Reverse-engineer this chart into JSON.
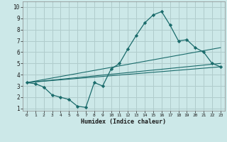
{
  "xlabel": "Humidex (Indice chaleur)",
  "ylabel": "",
  "xlim": [
    -0.5,
    23.5
  ],
  "ylim": [
    0.8,
    10.5
  ],
  "xticks": [
    0,
    1,
    2,
    3,
    4,
    5,
    6,
    7,
    8,
    9,
    10,
    11,
    12,
    13,
    14,
    15,
    16,
    17,
    18,
    19,
    20,
    21,
    22,
    23
  ],
  "yticks": [
    1,
    2,
    3,
    4,
    5,
    6,
    7,
    8,
    9,
    10
  ],
  "background_color": "#cce8e8",
  "grid_color": "#b0cccc",
  "line_color": "#1a6b6b",
  "line1_x": [
    0,
    1,
    2,
    3,
    4,
    5,
    6,
    7,
    8,
    9,
    10,
    11,
    12,
    13,
    14,
    15,
    16,
    17,
    18,
    19,
    20,
    21,
    22,
    23
  ],
  "line1_y": [
    3.3,
    3.2,
    2.9,
    2.2,
    2.0,
    1.8,
    1.2,
    1.1,
    3.3,
    3.0,
    4.5,
    5.0,
    6.3,
    7.5,
    8.6,
    9.3,
    9.6,
    8.4,
    7.0,
    7.1,
    6.4,
    6.0,
    5.0,
    4.7
  ],
  "line2_x": [
    0,
    23
  ],
  "line2_y": [
    3.3,
    6.4
  ],
  "line3_x": [
    0,
    23
  ],
  "line3_y": [
    3.3,
    5.0
  ],
  "line4_x": [
    0,
    23
  ],
  "line4_y": [
    3.3,
    4.7
  ]
}
